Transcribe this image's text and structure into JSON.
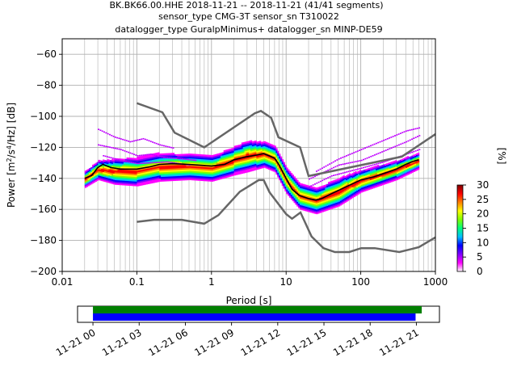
{
  "title_lines": [
    "BK.BK66.00.HHE   2018-11-21 -- 2018-11-21  (41/41 segments)",
    "sensor_type CMG-3T sensor_sn T310022",
    "datalogger_type GuralpMinimus+ datalogger_sn MINP-DE59"
  ],
  "chart_data": [
    {
      "type": "heatmap",
      "subtype": "probabilistic-power-spectral-density",
      "xlabel": "Period [s]",
      "ylabel_parts": [
        "Power [m",
        "2",
        "/s",
        "4",
        "/Hz] [dB]"
      ],
      "x_scale": "log",
      "xlim": [
        0.01,
        1000
      ],
      "ylim": [
        -200,
        -50
      ],
      "x_ticks": [
        0.01,
        0.1,
        1,
        10,
        100,
        1000
      ],
      "x_tick_labels": [
        "0.01",
        "0.1",
        "1",
        "10",
        "100",
        "1000"
      ],
      "y_ticks": [
        -200,
        -180,
        -160,
        -140,
        -120,
        -100,
        -80,
        -60
      ],
      "y_tick_labels": [
        "−200",
        "−180",
        "−160",
        "−140",
        "−120",
        "−100",
        "−80",
        "−60"
      ],
      "grid": true,
      "colorbar": {
        "label": "[%]",
        "range": [
          0,
          30
        ],
        "ticks": [
          0,
          5,
          10,
          15,
          20,
          25,
          30
        ],
        "tick_labels": [
          "0",
          "5",
          "10",
          "15",
          "20",
          "25",
          "30"
        ],
        "colors": [
          "#ffffff",
          "#ff00ff",
          "#7f00ff",
          "#0000ff",
          "#00bfff",
          "#00ff7f",
          "#7fff00",
          "#ffff00",
          "#ff7f00",
          "#ff0000",
          "#7f0000"
        ]
      },
      "noise_models": [
        {
          "id": "nhnm",
          "color": "#666666",
          "points": [
            [
              0.1,
              -91.5
            ],
            [
              0.22,
              -97.4
            ],
            [
              0.32,
              -110.5
            ],
            [
              0.8,
              -120
            ],
            [
              3.8,
              -98
            ],
            [
              4.6,
              -96.5
            ],
            [
              6.3,
              -101
            ],
            [
              7.9,
              -113.5
            ],
            [
              15.4,
              -120
            ],
            [
              20,
              -138.5
            ],
            [
              354.8,
              -126
            ],
            [
              1000,
              -111.5
            ]
          ]
        },
        {
          "id": "nlnm",
          "color": "#666666",
          "points": [
            [
              0.1,
              -168
            ],
            [
              0.17,
              -166.7
            ],
            [
              0.4,
              -166.7
            ],
            [
              0.8,
              -169.2
            ],
            [
              1.24,
              -163.7
            ],
            [
              2.4,
              -148.6
            ],
            [
              4.3,
              -141.1
            ],
            [
              5,
              -141.1
            ],
            [
              6,
              -149
            ],
            [
              10,
              -163
            ],
            [
              12,
              -166
            ],
            [
              15.6,
              -162
            ],
            [
              21.9,
              -177.5
            ],
            [
              31.6,
              -185
            ],
            [
              45,
              -187.5
            ],
            [
              70,
              -187.5
            ],
            [
              101,
              -185
            ],
            [
              154,
              -185
            ],
            [
              328,
              -187.5
            ],
            [
              600,
              -184.4
            ],
            [
              1000,
              -178
            ]
          ]
        }
      ],
      "mode_curve": {
        "color": "#000000",
        "points": [
          [
            0.02,
            -140
          ],
          [
            0.025,
            -138
          ],
          [
            0.03,
            -133
          ],
          [
            0.035,
            -131
          ],
          [
            0.045,
            -133
          ],
          [
            0.06,
            -134
          ],
          [
            0.1,
            -134
          ],
          [
            0.15,
            -132.5
          ],
          [
            0.2,
            -131
          ],
          [
            0.3,
            -130.5
          ],
          [
            0.5,
            -131
          ],
          [
            1,
            -132
          ],
          [
            1.5,
            -131
          ],
          [
            2,
            -128
          ],
          [
            3,
            -126
          ],
          [
            4,
            -125
          ],
          [
            5,
            -124
          ],
          [
            6,
            -125.5
          ],
          [
            7,
            -127
          ],
          [
            8,
            -131
          ],
          [
            10,
            -140
          ],
          [
            12,
            -147
          ],
          [
            15,
            -151
          ],
          [
            20,
            -153
          ],
          [
            25,
            -154
          ],
          [
            30,
            -153
          ],
          [
            40,
            -150
          ],
          [
            60,
            -146
          ],
          [
            100,
            -141
          ],
          [
            150,
            -139
          ],
          [
            200,
            -137
          ],
          [
            300,
            -134
          ],
          [
            400,
            -131
          ],
          [
            500,
            -129
          ],
          [
            600,
            -128
          ]
        ]
      },
      "bands": [
        {
          "points": [
            [
              0.02,
              -140,
              5
            ],
            [
              0.03,
              -134,
              6
            ],
            [
              0.05,
              -135,
              8
            ],
            [
              0.1,
              -135,
              9
            ],
            [
              0.2,
              -132,
              9
            ],
            [
              0.5,
              -132,
              8
            ],
            [
              1,
              -133,
              8
            ],
            [
              2,
              -128,
              9
            ],
            [
              3,
              -125,
              10
            ],
            [
              5,
              -124,
              8
            ],
            [
              7,
              -127,
              8
            ],
            [
              10,
              -141,
              8
            ],
            [
              15,
              -151,
              8
            ],
            [
              25,
              -154,
              8
            ],
            [
              50,
              -148,
              9
            ],
            [
              100,
              -141,
              7
            ],
            [
              300,
              -134,
              6
            ],
            [
              600,
              -128,
              5
            ]
          ],
          "color_index": [
            1,
            2,
            3,
            4,
            5,
            6,
            7
          ]
        }
      ],
      "outliers": [
        {
          "points": [
            [
              0.03,
              -108
            ],
            [
              0.05,
              -113
            ],
            [
              0.08,
              -116
            ],
            [
              0.12,
              -114
            ],
            [
              0.2,
              -118
            ],
            [
              0.3,
              -120
            ]
          ]
        },
        {
          "points": [
            [
              0.03,
              -118
            ],
            [
              0.06,
              -121
            ],
            [
              0.1,
              -125
            ],
            [
              0.15,
              -124
            ],
            [
              0.22,
              -126
            ],
            [
              0.4,
              -127
            ],
            [
              0.6,
              -128
            ]
          ]
        },
        {
          "points": [
            [
              0.035,
              -125
            ],
            [
              0.06,
              -128
            ],
            [
              0.1,
              -130
            ],
            [
              0.25,
              -129
            ],
            [
              0.5,
              -131
            ]
          ]
        },
        {
          "points": [
            [
              20,
              -140
            ],
            [
              50,
              -131
            ],
            [
              100,
              -128
            ],
            [
              200,
              -122
            ],
            [
              400,
              -116
            ],
            [
              600,
              -112
            ]
          ]
        },
        {
          "points": [
            [
              25,
              -135
            ],
            [
              50,
              -127
            ],
            [
              100,
              -121
            ],
            [
              200,
              -115
            ],
            [
              400,
              -109
            ],
            [
              600,
              -107
            ]
          ]
        },
        {
          "points": [
            [
              20,
              -145
            ],
            [
              40,
              -138
            ],
            [
              100,
              -133
            ],
            [
              200,
              -129
            ],
            [
              400,
              -124
            ],
            [
              600,
              -121
            ]
          ]
        }
      ]
    },
    {
      "type": "timeline",
      "tick_labels": [
        "11-21 00",
        "11-21 03",
        "11-21 06",
        "11-21 09",
        "11-21 12",
        "11-21 15",
        "11-21 18",
        "11-21 21"
      ],
      "tick_hours": [
        0,
        3,
        6,
        9,
        12,
        15,
        18,
        21
      ],
      "range_hours": [
        -1,
        22.5
      ],
      "bars": [
        {
          "color": "#008000",
          "start_hours": 0,
          "end_hours": 21.35
        },
        {
          "color": "#0000ff",
          "start_hours": 0,
          "end_hours": 20.95
        }
      ]
    }
  ]
}
